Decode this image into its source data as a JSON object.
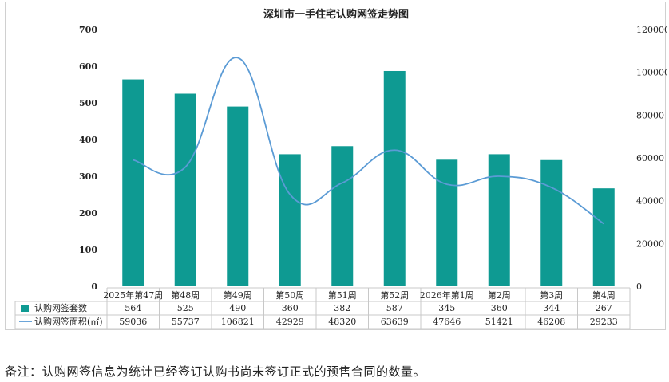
{
  "chart_data": {
    "type": "bar",
    "title": "深圳市一手住宅认购网签走势图",
    "categories": [
      "2025年第47周",
      "第48周",
      "第49周",
      "第50周",
      "第51周",
      "第52周",
      "2026年第1周",
      "第2周",
      "第3周",
      "第4周"
    ],
    "series": [
      {
        "name": "认购网签套数",
        "type": "bar",
        "axis": "left",
        "color": "#0e9a92",
        "values": [
          564,
          525,
          490,
          360,
          382,
          587,
          345,
          360,
          344,
          267
        ]
      },
      {
        "name": "认购网签面积(㎡)",
        "type": "line",
        "axis": "right",
        "color": "#5b9bd5",
        "values": [
          59036,
          55737,
          106821,
          42929,
          48320,
          63639,
          47646,
          51421,
          46208,
          29233
        ]
      }
    ],
    "y_left": {
      "min": 0,
      "max": 700,
      "ticks": [
        0,
        100,
        200,
        300,
        400,
        500,
        600,
        700
      ]
    },
    "y_right": {
      "min": 0,
      "max": 120000,
      "ticks": [
        0,
        20000,
        40000,
        60000,
        80000,
        100000,
        120000
      ]
    },
    "grid": false,
    "legend_placement": "data-table"
  },
  "footnote": "备注：认购网签信息为统计已经签订认购书尚未签订正式的预售合同的数量。"
}
